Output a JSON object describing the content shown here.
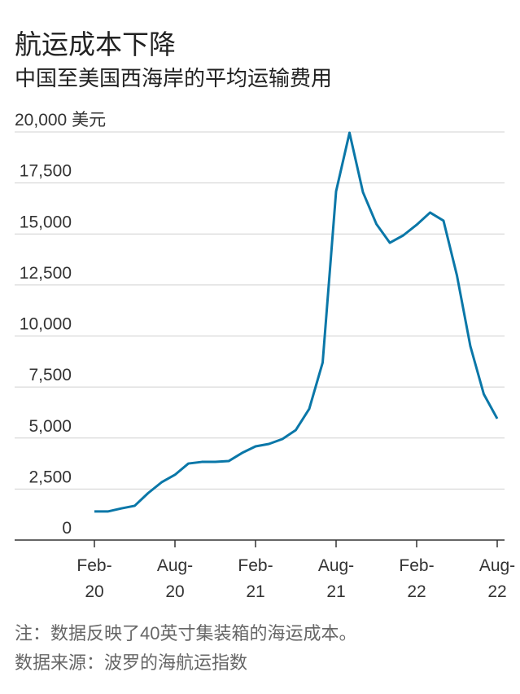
{
  "chart_data": {
    "type": "line",
    "title": "航运成本下降",
    "subtitle": "中国至美国西海岸的平均运输费用",
    "note": "注：数据反映了40英寸集装箱的海运成本。",
    "source": "数据来源：波罗的海航运指数",
    "categories": [
      "Feb-\n20",
      null,
      null,
      null,
      null,
      null,
      "Aug-\n20",
      null,
      null,
      null,
      null,
      null,
      "Feb-\n21",
      null,
      null,
      null,
      null,
      null,
      "Aug-\n21",
      null,
      null,
      null,
      null,
      null,
      "Feb-\n22",
      null,
      null,
      null,
      null,
      null,
      "Aug-\n22"
    ],
    "series": [
      {
        "color": "#0a77a8",
        "values": [
          1400,
          1400,
          1550,
          1680,
          2300,
          2830,
          3200,
          3750,
          3830,
          3830,
          3870,
          4270,
          4590,
          4710,
          4950,
          5390,
          6430,
          8700,
          17090,
          19960,
          17050,
          15490,
          14570,
          14930,
          15450,
          16050,
          15650,
          12970,
          9500,
          7150,
          5950
        ]
      }
    ],
    "ylim": [
      0,
      20000
    ],
    "yticks": [
      0,
      {
        "value": 2500,
        "label": "2,500"
      },
      {
        "value": 5000,
        "label": "5,000"
      },
      {
        "value": 7500,
        "label": "7,500"
      },
      {
        "value": 10000,
        "label": "10,000"
      },
      {
        "value": 12500,
        "label": "12,500"
      },
      {
        "value": 15000,
        "label": "15,000"
      },
      {
        "value": 17500,
        "label": "17,500"
      },
      {
        "value": 20000,
        "label": "20,000 美元"
      }
    ],
    "grid": true
  }
}
